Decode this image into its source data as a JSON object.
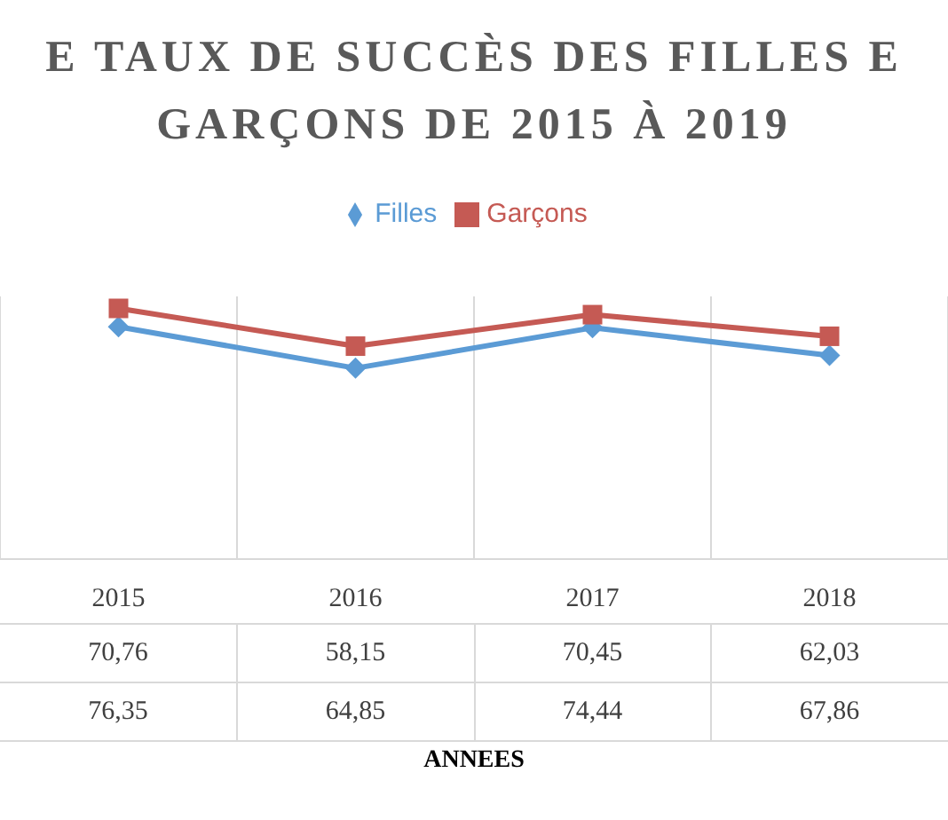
{
  "chart_data": {
    "type": "line",
    "title": "E TAUX DE SUCCÈS DES FILLES E\nGARÇONS DE 2015 À 2019",
    "annotations": [
      "ANNEES"
    ],
    "categories": [
      "2015",
      "2016",
      "2017",
      "2018"
    ],
    "series": [
      {
        "name": "Filles",
        "color": "#5b9bd5",
        "marker": "diamond",
        "values": [
          70.76,
          58.15,
          70.45,
          62.03
        ],
        "value_labels": [
          "70,76",
          "58,15",
          "70,45",
          "62,03"
        ]
      },
      {
        "name": "Garçons",
        "color": "#c55a54",
        "marker": "square",
        "values": [
          76.35,
          64.85,
          74.44,
          67.86
        ],
        "value_labels": [
          "76,35",
          "64,85",
          "74,44",
          "67,86"
        ]
      }
    ],
    "legend": "top",
    "grid": "x",
    "line_style": "solid"
  }
}
